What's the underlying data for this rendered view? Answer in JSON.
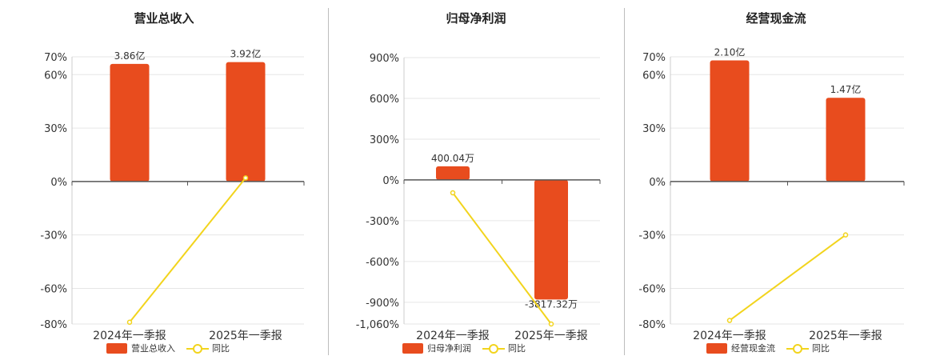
{
  "colors": {
    "bar": "#e84c1e",
    "line": "#f2d41d",
    "grid": "#e6e6e6",
    "axis": "#555555"
  },
  "chart_data": [
    {
      "type": "bar",
      "title": "营业总收入",
      "categories": [
        "2024年一季报",
        "2025年一季报"
      ],
      "ylim": [
        -80,
        70
      ],
      "yticks": [
        70,
        60,
        30,
        0,
        -30,
        -60,
        -80
      ],
      "ytick_labels": [
        "70%",
        "60%",
        "30%",
        "0%",
        "-30%",
        "-60%",
        "-80%"
      ],
      "series": [
        {
          "name": "营业总收入",
          "type": "bar",
          "values": [
            66,
            67
          ],
          "labels": [
            "3.86亿",
            "3.92亿"
          ]
        },
        {
          "name": "同比",
          "type": "line",
          "values": [
            -79,
            2
          ]
        }
      ],
      "legend": "bottom"
    },
    {
      "type": "bar",
      "title": "归母净利润",
      "categories": [
        "2024年一季报",
        "2025年一季报"
      ],
      "ylim": [
        -1060,
        900
      ],
      "yticks": [
        900,
        600,
        300,
        0,
        -300,
        -600,
        -900,
        -1060
      ],
      "ytick_labels": [
        "900%",
        "600%",
        "300%",
        "0%",
        "-300%",
        "-600%",
        "-900%",
        "-1,060%"
      ],
      "series": [
        {
          "name": "归母净利润",
          "type": "bar",
          "values": [
            100,
            -880
          ],
          "labels": [
            "400.04万",
            "-3817.32万"
          ]
        },
        {
          "name": "同比",
          "type": "line",
          "values": [
            -95,
            -1060
          ]
        }
      ],
      "legend": "bottom"
    },
    {
      "type": "bar",
      "title": "经营现金流",
      "categories": [
        "2024年一季报",
        "2025年一季报"
      ],
      "ylim": [
        -80,
        70
      ],
      "yticks": [
        70,
        60,
        30,
        0,
        -30,
        -60,
        -80
      ],
      "ytick_labels": [
        "70%",
        "60%",
        "30%",
        "0%",
        "-30%",
        "-60%",
        "-80%"
      ],
      "series": [
        {
          "name": "经营现金流",
          "type": "bar",
          "values": [
            68,
            47
          ],
          "labels": [
            "2.10亿",
            "1.47亿"
          ]
        },
        {
          "name": "同比",
          "type": "line",
          "values": [
            -78,
            -30
          ]
        }
      ],
      "legend": "bottom"
    }
  ]
}
